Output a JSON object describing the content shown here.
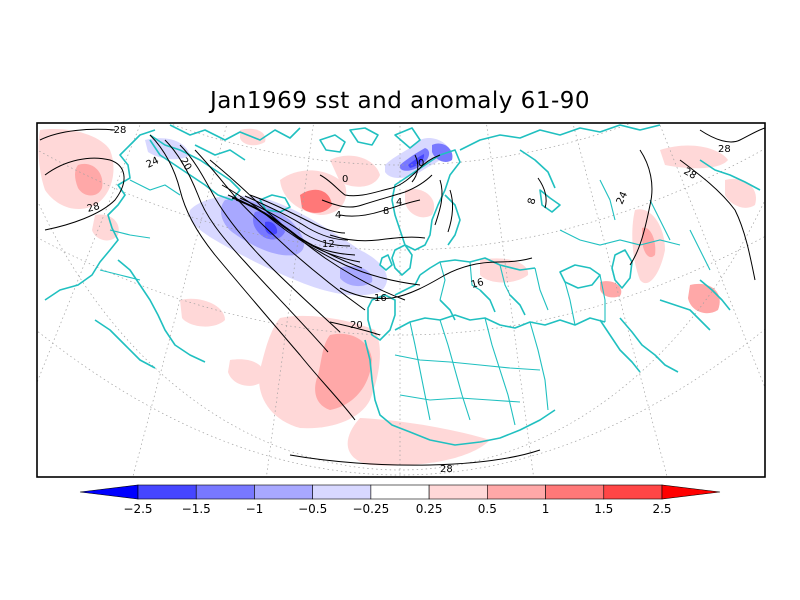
{
  "title": "Jan1969 sst and anomaly 61-90",
  "colorbar": {
    "bins": [
      {
        "from": null,
        "to": -2.5,
        "color": "#0000ff"
      },
      {
        "from": -2.5,
        "to": -1.5,
        "color": "#4646ff"
      },
      {
        "from": -1.5,
        "to": -1,
        "color": "#7878ff"
      },
      {
        "from": -1,
        "to": -0.5,
        "color": "#a8a8ff"
      },
      {
        "from": -0.5,
        "to": -0.25,
        "color": "#d8d8ff"
      },
      {
        "from": -0.25,
        "to": 0.25,
        "color": "#ffffff"
      },
      {
        "from": 0.25,
        "to": 0.5,
        "color": "#ffd8d8"
      },
      {
        "from": 0.5,
        "to": 1,
        "color": "#ffa8a8"
      },
      {
        "from": 1,
        "to": 1.5,
        "color": "#ff7878"
      },
      {
        "from": 1.5,
        "to": 2.5,
        "color": "#ff4646"
      },
      {
        "from": 2.5,
        "to": null,
        "color": "#ff0000"
      }
    ],
    "tick_labels": [
      "-2.5",
      "-1.5",
      "-1",
      "-0.5",
      "-0.25",
      "0.25",
      "0.5",
      "1",
      "1.5",
      "2.5"
    ]
  },
  "contour_labels": [
    "-28",
    "24",
    "20",
    "28",
    "0",
    "4",
    "8",
    "12",
    "16",
    "20",
    "0",
    "4",
    "16",
    "24",
    "28",
    "28",
    "28",
    "8"
  ],
  "colors": {
    "coastline": "#20c0c0",
    "contour": "#000000",
    "grid": "#a0a0a0",
    "frame": "#000000"
  }
}
